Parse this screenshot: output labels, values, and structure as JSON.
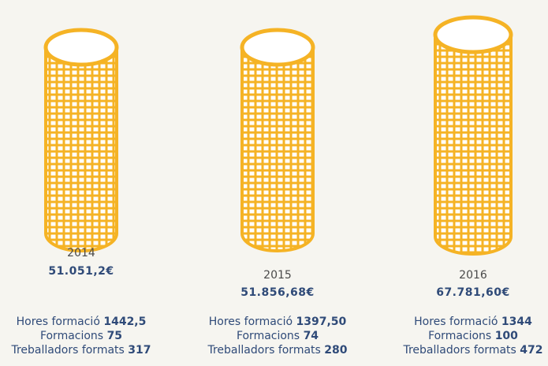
{
  "items": [
    {
      "year": "2014",
      "amount": "51.051,2€",
      "stats": [
        {
          "label": "Hores formació",
          "value": "1442,5"
        },
        {
          "label": "Formacions",
          "value": 75
        },
        {
          "label": "Treballadors formats",
          "value": 317
        }
      ]
    },
    {
      "year": "2015",
      "amount": "51.856,68€",
      "stats": [
        {
          "label": "Hores formació",
          "value": "1397,50"
        },
        {
          "label": "Formacions",
          "value": 74
        },
        {
          "label": "Treballadors formats",
          "value": 280
        }
      ]
    },
    {
      "year": "2016",
      "amount": "67.781,60€",
      "stats": [
        {
          "label": "Hores formació",
          "value": "1344"
        },
        {
          "label": "Formacions",
          "value": 100
        },
        {
          "label": "Treballadors formats",
          "value": 472
        }
      ]
    }
  ]
}
